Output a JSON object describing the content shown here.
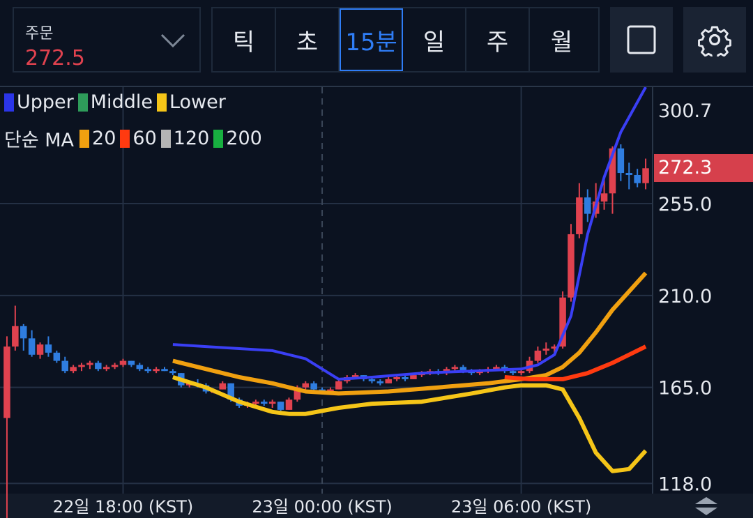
{
  "order": {
    "label": "주문",
    "price": "272.5"
  },
  "timeframes": [
    "틱",
    "초",
    "15분",
    "일",
    "주",
    "월"
  ],
  "active_timeframe": "15분",
  "legend": {
    "bands": [
      {
        "name": "Upper",
        "color": "#2b35e8"
      },
      {
        "name": "Middle",
        "color": "#2e9c5a"
      },
      {
        "name": "Lower",
        "color": "#f5c518"
      }
    ],
    "ma_title": "단순 MA",
    "ma": [
      {
        "name": "20",
        "color": "#f0a010"
      },
      {
        "name": "60",
        "color": "#ff3a10"
      },
      {
        "name": "120",
        "color": "#b5b5b5"
      },
      {
        "name": "200",
        "color": "#18b040"
      }
    ]
  },
  "current_price_label": "272.3",
  "colors": {
    "up": "#e0424f",
    "down": "#2f7de0",
    "background": "#0b1220",
    "grid": "#243044"
  },
  "chart_data": {
    "type": "candlestick",
    "y_tick_labels": [
      "300.7",
      "255.0",
      "210.0",
      "165.0",
      "118.0"
    ],
    "y_ticks": [
      300.7,
      255.0,
      210.0,
      165.0,
      118.0
    ],
    "x_tick_labels": [
      "22일 18:00 (KST)",
      "23일 00:00 (KST)",
      "23일 06:00 (KST)"
    ],
    "ylim": [
      113,
      312
    ],
    "n": 78,
    "x_tick_index": [
      14,
      38,
      62
    ],
    "dashed_index": 38,
    "current_price": 272.3,
    "candles": [
      [
        0,
        150,
        190,
        100,
        185
      ],
      [
        1,
        185,
        205,
        183,
        195
      ],
      [
        2,
        195,
        196,
        183,
        189
      ],
      [
        3,
        189,
        193,
        180,
        181
      ],
      [
        4,
        181,
        187,
        179,
        186
      ],
      [
        5,
        186,
        190,
        180,
        182
      ],
      [
        6,
        182,
        183,
        177,
        178
      ],
      [
        7,
        178,
        180,
        172,
        173
      ],
      [
        8,
        173,
        176,
        172,
        175
      ],
      [
        9,
        175,
        177,
        173,
        176
      ],
      [
        10,
        176,
        178,
        174,
        177
      ],
      [
        11,
        177,
        178,
        173,
        174
      ],
      [
        12,
        174,
        176,
        173,
        175
      ],
      [
        13,
        175,
        177,
        174,
        176
      ],
      [
        14,
        176,
        179,
        175,
        178
      ],
      [
        15,
        178,
        178,
        175,
        176
      ],
      [
        16,
        176,
        177,
        173,
        174
      ],
      [
        17,
        174,
        175,
        172,
        173
      ],
      [
        18,
        173,
        175,
        172,
        174
      ],
      [
        19,
        174,
        175,
        173,
        173
      ],
      [
        20,
        173,
        174,
        171,
        172
      ],
      [
        21,
        172,
        172,
        165,
        166
      ],
      [
        22,
        166,
        168,
        165,
        167
      ],
      [
        23,
        167,
        169,
        165,
        166
      ],
      [
        24,
        166,
        167,
        162,
        163
      ],
      [
        25,
        163,
        164,
        162,
        163
      ],
      [
        26,
        164,
        168,
        164,
        167
      ],
      [
        27,
        167,
        167,
        158,
        159
      ],
      [
        28,
        159,
        160,
        155,
        156
      ],
      [
        29,
        156,
        158,
        155,
        157
      ],
      [
        30,
        157,
        159,
        156,
        158
      ],
      [
        31,
        158,
        159,
        156,
        157
      ],
      [
        32,
        157,
        159,
        155,
        158
      ],
      [
        33,
        158,
        158,
        153,
        154
      ],
      [
        34,
        154,
        160,
        154,
        159
      ],
      [
        35,
        159,
        166,
        158,
        165
      ],
      [
        36,
        165,
        168,
        164,
        167
      ],
      [
        37,
        167,
        168,
        163,
        164
      ],
      [
        38,
        164,
        165,
        162,
        163
      ],
      [
        39,
        163,
        165,
        162,
        164
      ],
      [
        40,
        164,
        169,
        164,
        168
      ],
      [
        41,
        168,
        171,
        167,
        170
      ],
      [
        42,
        170,
        172,
        169,
        171
      ],
      [
        43,
        171,
        171,
        168,
        169
      ],
      [
        44,
        169,
        170,
        167,
        168
      ],
      [
        45,
        168,
        169,
        166,
        167
      ],
      [
        46,
        167,
        170,
        167,
        169
      ],
      [
        47,
        169,
        171,
        168,
        170
      ],
      [
        48,
        170,
        171,
        168,
        169
      ],
      [
        49,
        169,
        172,
        169,
        171
      ],
      [
        50,
        171,
        173,
        170,
        172
      ],
      [
        51,
        172,
        174,
        171,
        173
      ],
      [
        52,
        173,
        174,
        171,
        172
      ],
      [
        53,
        172,
        175,
        171,
        174
      ],
      [
        54,
        174,
        176,
        173,
        175
      ],
      [
        55,
        175,
        176,
        172,
        173
      ],
      [
        56,
        173,
        174,
        171,
        172
      ],
      [
        57,
        172,
        174,
        171,
        173
      ],
      [
        58,
        173,
        175,
        172,
        174
      ],
      [
        59,
        174,
        176,
        173,
        175
      ],
      [
        60,
        175,
        176,
        172,
        173
      ],
      [
        61,
        173,
        174,
        171,
        172
      ],
      [
        62,
        172,
        174,
        171,
        173
      ],
      [
        63,
        173,
        180,
        172,
        178
      ],
      [
        64,
        178,
        185,
        177,
        183
      ],
      [
        65,
        183,
        187,
        181,
        184
      ],
      [
        66,
        184,
        186,
        182,
        185
      ],
      [
        67,
        185,
        212,
        184,
        209
      ],
      [
        68,
        209,
        245,
        207,
        240
      ],
      [
        69,
        240,
        265,
        238,
        258
      ],
      [
        70,
        258,
        262,
        246,
        250
      ],
      [
        71,
        250,
        265,
        248,
        256
      ],
      [
        72,
        256,
        268,
        252,
        260
      ],
      [
        73,
        260,
        283,
        250,
        282
      ],
      [
        74,
        282,
        284,
        266,
        270
      ],
      [
        75,
        270,
        275,
        262,
        269
      ],
      [
        76,
        269,
        272,
        263,
        265
      ],
      [
        77,
        265,
        277,
        262,
        272.3
      ]
    ],
    "series": [
      {
        "name": "Upper",
        "color": "#3a3ff5",
        "points": [
          [
            20,
            186
          ],
          [
            24,
            185
          ],
          [
            28,
            184
          ],
          [
            32,
            183
          ],
          [
            36,
            179
          ],
          [
            38,
            174
          ],
          [
            40,
            169
          ],
          [
            44,
            170
          ],
          [
            50,
            172
          ],
          [
            56,
            173
          ],
          [
            62,
            174
          ],
          [
            64,
            176
          ],
          [
            66,
            181
          ],
          [
            68,
            200
          ],
          [
            70,
            240
          ],
          [
            72,
            268
          ],
          [
            74,
            290
          ],
          [
            77,
            312
          ]
        ]
      },
      {
        "name": "20",
        "color": "#f0a010",
        "points": [
          [
            20,
            178
          ],
          [
            24,
            174
          ],
          [
            28,
            170
          ],
          [
            32,
            167
          ],
          [
            36,
            163
          ],
          [
            40,
            162
          ],
          [
            46,
            163
          ],
          [
            52,
            165
          ],
          [
            58,
            167
          ],
          [
            62,
            169
          ],
          [
            65,
            171
          ],
          [
            67,
            175
          ],
          [
            69,
            182
          ],
          [
            71,
            192
          ],
          [
            73,
            203
          ],
          [
            75,
            212
          ],
          [
            77,
            221
          ]
        ]
      },
      {
        "name": "Lower",
        "color": "#f5c518",
        "points": [
          [
            20,
            170
          ],
          [
            24,
            165
          ],
          [
            28,
            158
          ],
          [
            32,
            153
          ],
          [
            34,
            152
          ],
          [
            36,
            152
          ],
          [
            40,
            155
          ],
          [
            44,
            157
          ],
          [
            50,
            158
          ],
          [
            56,
            162
          ],
          [
            60,
            165
          ],
          [
            62,
            166
          ],
          [
            65,
            166
          ],
          [
            67,
            164
          ],
          [
            69,
            150
          ],
          [
            71,
            133
          ],
          [
            73,
            124
          ],
          [
            75,
            125
          ],
          [
            77,
            134
          ]
        ]
      },
      {
        "name": "60",
        "color": "#ff3a10",
        "points": [
          [
            60,
            170
          ],
          [
            63,
            169
          ],
          [
            67,
            169
          ],
          [
            70,
            172
          ],
          [
            73,
            177
          ],
          [
            77,
            185
          ]
        ]
      }
    ]
  }
}
